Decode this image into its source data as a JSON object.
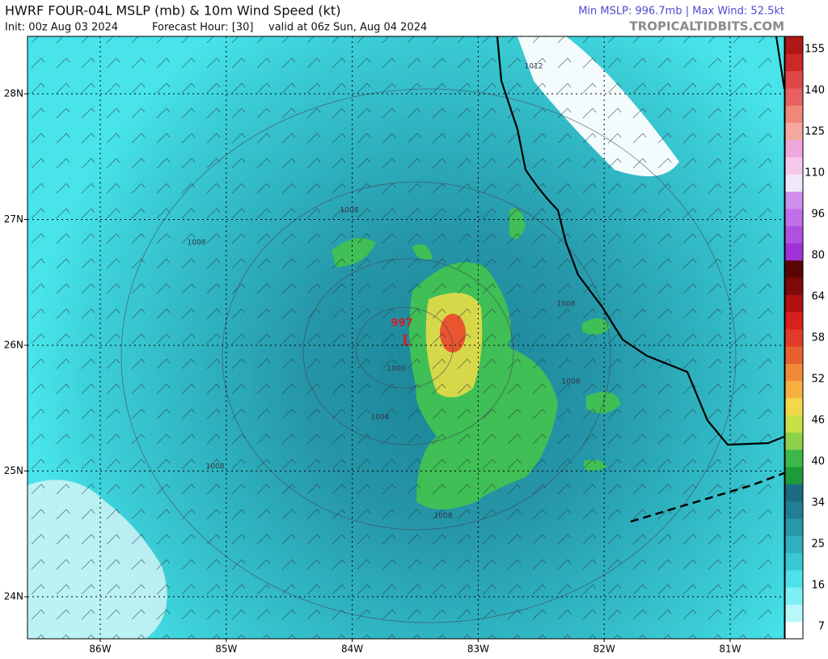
{
  "header": {
    "title": "HWRF FOUR-04L MSLP (mb) & 10m Wind Speed (kt)",
    "init": "Init: 00z Aug 03 2024",
    "forecast": "Forecast Hour: [30]",
    "valid": "valid at 06z Sun, Aug 04 2024",
    "stats": "Min MSLP: 996.7mb | Max Wind: 52.5kt",
    "source": "TROPICALTIDBITS.COM"
  },
  "map": {
    "lat_labels": [
      "28N",
      "27N",
      "26N",
      "25N",
      "24N"
    ],
    "lon_labels": [
      "86W",
      "85W",
      "84W",
      "83W",
      "82W",
      "81W"
    ],
    "low": {
      "pressure": "997",
      "symbol": "L"
    },
    "contour_labels": [
      "1012",
      "1008",
      "1008",
      "1008",
      "1008",
      "1000",
      "1004",
      "1008",
      "1008"
    ]
  },
  "colorbar": {
    "labels": [
      "155",
      "140",
      "125",
      "110",
      "96",
      "80",
      "64",
      "58",
      "52",
      "46",
      "40",
      "34",
      "25",
      "16",
      "7"
    ]
  }
}
